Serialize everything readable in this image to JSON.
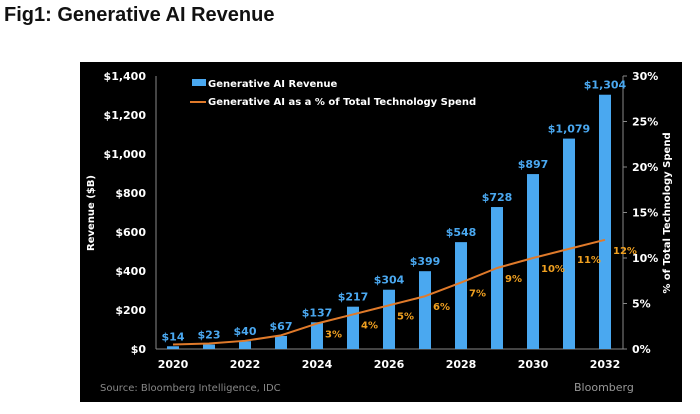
{
  "page_title": "Fig1: Generative AI Revenue",
  "colors": {
    "bar": "#4aa8f0",
    "line": "#e07a2a",
    "pct_label": "#f0a020",
    "bg": "#000000"
  },
  "chart_data": {
    "type": "bar",
    "title": "Fig1: Generative AI Revenue",
    "categories": [
      "2020",
      "2021",
      "2022",
      "2023",
      "2024",
      "2025",
      "2026",
      "2027",
      "2028",
      "2029",
      "2030",
      "2031",
      "2032"
    ],
    "xticks": [
      "2020",
      "2022",
      "2024",
      "2026",
      "2028",
      "2030",
      "2032"
    ],
    "series": [
      {
        "name": "Generative AI Revenue",
        "type": "bar",
        "axis": "left",
        "values": [
          14,
          23,
          40,
          67,
          137,
          217,
          304,
          399,
          548,
          728,
          897,
          1079,
          1304
        ],
        "labels": [
          "$14",
          "$23",
          "$40",
          "$67",
          "$137",
          "$217",
          "$304",
          "$399",
          "$548",
          "$728",
          "$897",
          "$1,079",
          "$1,304"
        ]
      },
      {
        "name": "Generative AI as a % of Total Technology Spend",
        "type": "line",
        "axis": "right",
        "values": [
          0.5,
          0.6,
          0.9,
          1.5,
          2.8,
          3.8,
          4.8,
          5.8,
          7.3,
          8.9,
          10,
          11,
          12
        ],
        "labels": [
          "",
          "",
          "",
          "",
          "3%",
          "4%",
          "5%",
          "6%",
          "7%",
          "9%",
          "10%",
          "11%",
          "12%"
        ]
      }
    ],
    "ylabel": "Revenue ($B)",
    "ylim": [
      0,
      1400
    ],
    "yticks": [
      "$0",
      "$200",
      "$400",
      "$600",
      "$800",
      "$1,000",
      "$1,200",
      "$1,400"
    ],
    "y2label": "% of Total Technology Spend",
    "y2lim": [
      0,
      30
    ],
    "y2ticks": [
      "0%",
      "5%",
      "10%",
      "15%",
      "20%",
      "25%",
      "30%"
    ],
    "legend": "top-left",
    "source": "Source: Bloomberg Intelligence, IDC",
    "brand": "Bloomberg"
  }
}
